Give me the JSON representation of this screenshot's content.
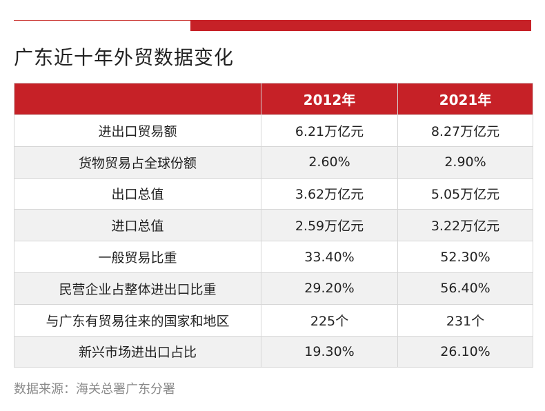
{
  "title": "广东近十年外贸数据变化",
  "source": "数据来源：海关总署广东分署",
  "colors": {
    "header_bg": "#c62127",
    "alt_row_bg": "#f1f1f1"
  },
  "chart_data": {
    "type": "table",
    "columns": [
      "",
      "2012年",
      "2021年"
    ],
    "rows": [
      [
        "进出口贸易额",
        "6.21万亿元",
        "8.27万亿元"
      ],
      [
        "货物贸易占全球份额",
        "2.60%",
        "2.90%"
      ],
      [
        "出口总值",
        "3.62万亿元",
        "5.05万亿元"
      ],
      [
        "进口总值",
        "2.59万亿元",
        "3.22万亿元"
      ],
      [
        "一般贸易比重",
        "33.40%",
        "52.30%"
      ],
      [
        "民营企业占整体进出口比重",
        "29.20%",
        "56.40%"
      ],
      [
        "与广东有贸易往来的国家和地区",
        "225个",
        "231个"
      ],
      [
        "新兴市场进出口占比",
        "19.30%",
        "26.10%"
      ]
    ]
  }
}
